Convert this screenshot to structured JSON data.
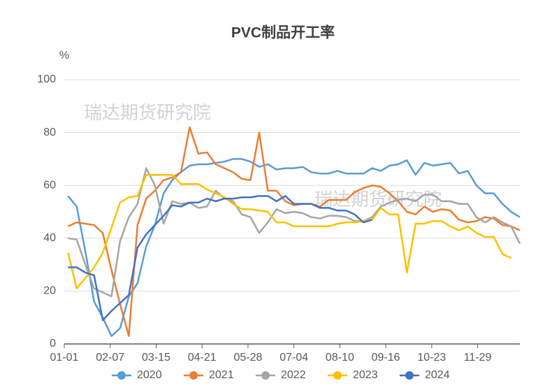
{
  "chart_data": {
    "type": "line",
    "title": "PVC制品开工率",
    "ylabel": "%",
    "watermarks": [
      "瑞达期货研究院",
      "瑞达期货研究院"
    ],
    "x": [
      3,
      10,
      17,
      24,
      31,
      38,
      45,
      52,
      59,
      66,
      73,
      80,
      87,
      94,
      101,
      108,
      115,
      122,
      129,
      136,
      143,
      150,
      157,
      164,
      171,
      178,
      185,
      192,
      199,
      206,
      213,
      220,
      227,
      234,
      241,
      248,
      255,
      262,
      269,
      276,
      283,
      290,
      297,
      304,
      311,
      318,
      325,
      332,
      339,
      346,
      353,
      360,
      367
    ],
    "xlim": [
      0,
      367
    ],
    "xticks": [
      {
        "value": 0,
        "label": "01-01"
      },
      {
        "value": 37,
        "label": "02-07"
      },
      {
        "value": 74,
        "label": "03-15"
      },
      {
        "value": 111,
        "label": "04-21"
      },
      {
        "value": 148,
        "label": "05-28"
      },
      {
        "value": 185,
        "label": "07-04"
      },
      {
        "value": 222,
        "label": "08-10"
      },
      {
        "value": 259,
        "label": "09-16"
      },
      {
        "value": 296,
        "label": "10-23"
      },
      {
        "value": 333,
        "label": "11-29"
      }
    ],
    "ylim": [
      0,
      100
    ],
    "yticks": [
      0,
      20,
      40,
      60,
      80,
      100
    ],
    "grid": true,
    "legend": "bottom",
    "series": [
      {
        "name": "2020",
        "color": "#5b9bd5",
        "values": [
          56,
          52,
          35,
          16,
          10,
          3,
          6,
          18,
          23,
          37,
          45,
          57,
          62,
          65,
          67.5,
          68,
          68,
          68.5,
          69,
          70,
          70,
          69,
          67,
          68,
          66,
          66.5,
          66.5,
          67,
          65,
          64.5,
          64.5,
          65.5,
          64.5,
          64.5,
          64.5,
          66.5,
          65.5,
          67.5,
          68,
          69.5,
          64,
          68.5,
          67.5,
          68,
          68.5,
          64.5,
          65.5,
          60,
          57,
          57,
          53,
          50,
          48
        ]
      },
      {
        "name": "2021",
        "color": "#ed7d31",
        "values": [
          44.5,
          46,
          45.5,
          45,
          42,
          28,
          15,
          3,
          45,
          55,
          58,
          62,
          63,
          65,
          82,
          72,
          72.5,
          68,
          66.5,
          65,
          62.5,
          62,
          80,
          58,
          58,
          54,
          52.5,
          53,
          53,
          52,
          54.5,
          54.5,
          54.5,
          57.5,
          59,
          60,
          59.5,
          57,
          54,
          50,
          49,
          52,
          50,
          51,
          50.5,
          47,
          46,
          46.5,
          48,
          47.5,
          45,
          44.5,
          43
        ]
      },
      {
        "name": "2022",
        "color": "#a5a5a5",
        "values": [
          40,
          39.5,
          30,
          21,
          19.5,
          18,
          39,
          48,
          53,
          66.5,
          60,
          45.5,
          54,
          53,
          53.5,
          51.5,
          52,
          58,
          55,
          54,
          49,
          48,
          42,
          46,
          51,
          49.5,
          50,
          49.5,
          48,
          47.5,
          48.5,
          48.5,
          48,
          46.5,
          46.5,
          48,
          52,
          53.5,
          54.5,
          55,
          54,
          56.5,
          56.5,
          54,
          54,
          53,
          53,
          48,
          46,
          48,
          46,
          44.5,
          38
        ]
      },
      {
        "name": "2023",
        "color": "#ffc000",
        "values": [
          34.5,
          21,
          25,
          29,
          34.5,
          44,
          53.5,
          55.5,
          56,
          64,
          64,
          64,
          64,
          60.5,
          60.5,
          60.5,
          58.5,
          57,
          55.5,
          53,
          51,
          51,
          50.5,
          50,
          46,
          46,
          44.5,
          44.5,
          44.5,
          44.5,
          44.5,
          45.5,
          46,
          46,
          46.5,
          47,
          51.5,
          49,
          49,
          27,
          45.5,
          45.5,
          46.5,
          46.5,
          44.5,
          43,
          44.5,
          42,
          40.5,
          40.5,
          34,
          32.5,
          null
        ]
      },
      {
        "name": "2024",
        "color": "#4472c4",
        "values": [
          29,
          29,
          27,
          26,
          9,
          12.5,
          15.5,
          18.5,
          36.5,
          41.5,
          45,
          48.5,
          52.5,
          52,
          53.5,
          53.5,
          55,
          54,
          55,
          55,
          55.5,
          55.5,
          56,
          56,
          54,
          56,
          53,
          53,
          53,
          51.5,
          51.5,
          50.5,
          50.5,
          49,
          46,
          47,
          null,
          null,
          null,
          null,
          null,
          null,
          null,
          null,
          null,
          null,
          null,
          null,
          null,
          null,
          null,
          null,
          null
        ]
      }
    ]
  }
}
